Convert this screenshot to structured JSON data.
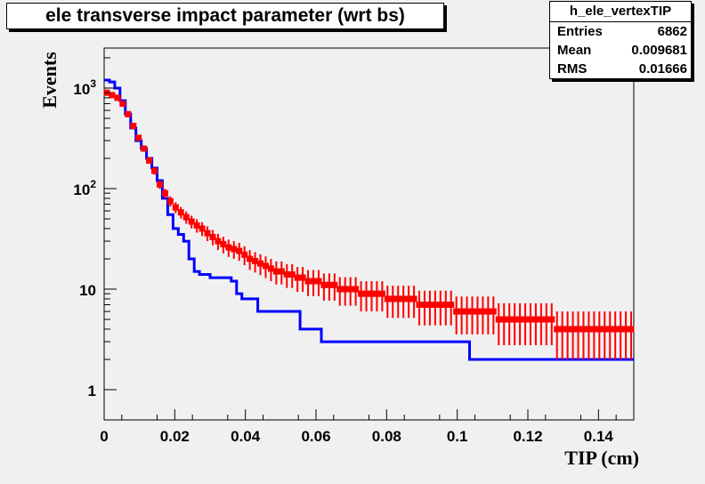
{
  "chart_data": {
    "type": "histogram",
    "title": "ele transverse impact parameter (wrt bs)",
    "xlabel": "TIP (cm)",
    "ylabel": "Events",
    "xlim": [
      0,
      0.15
    ],
    "ylim": [
      0.5,
      2500
    ],
    "yscale": "log",
    "grid": false,
    "x_ticks": [
      "0",
      "0.02",
      "0.04",
      "0.06",
      "0.08",
      "0.1",
      "0.12",
      "0.14"
    ],
    "y_ticks": [
      {
        "value": 1,
        "label": "1"
      },
      {
        "value": 10,
        "label": "10"
      },
      {
        "value": 100,
        "base": "10",
        "exp": "2"
      },
      {
        "value": 1000,
        "base": "10",
        "exp": "3"
      }
    ],
    "bin_width": 0.0015,
    "series": [
      {
        "kind": "step",
        "color": "#0000ff",
        "values": [
          1200,
          1150,
          1000,
          750,
          550,
          400,
          300,
          250,
          200,
          160,
          120,
          80,
          55,
          40,
          35,
          30,
          20,
          15,
          14,
          14,
          13,
          13,
          13,
          13,
          12,
          9,
          8,
          8,
          8,
          6,
          6,
          6,
          6,
          6,
          6,
          6,
          6,
          4,
          4,
          4,
          4,
          3,
          3,
          3,
          3,
          3,
          3,
          3,
          3,
          3,
          3,
          3,
          3,
          3,
          3,
          3,
          3,
          3,
          3,
          3,
          3,
          3,
          3,
          3,
          3,
          3,
          3,
          3,
          3,
          2,
          2,
          2,
          2,
          2,
          2,
          2,
          2,
          2,
          2,
          2,
          2,
          2,
          2,
          2,
          2,
          2,
          2,
          2,
          2,
          2,
          2,
          2,
          2,
          2,
          2,
          2,
          2,
          2,
          2,
          2
        ]
      },
      {
        "kind": "points",
        "color": "#ff0000",
        "values": [
          900,
          850,
          800,
          700,
          550,
          420,
          320,
          250,
          190,
          150,
          110,
          90,
          75,
          65,
          58,
          52,
          47,
          43,
          40,
          36,
          33,
          30,
          28,
          26,
          25,
          24,
          22,
          20,
          19,
          18,
          17,
          16,
          15,
          15,
          14,
          14,
          13,
          13,
          12,
          12,
          12,
          11,
          11,
          11,
          10,
          10,
          10,
          10,
          9,
          9,
          9,
          9,
          9,
          8,
          8,
          8,
          8,
          8,
          8,
          7,
          7,
          7,
          7,
          7,
          7,
          7,
          6,
          6,
          6,
          6,
          6,
          6,
          6,
          6,
          5,
          5,
          5,
          5,
          5,
          5,
          5,
          5,
          5,
          5,
          5,
          4,
          4,
          4,
          4,
          4,
          4,
          4,
          4,
          4,
          4,
          4,
          4,
          4,
          4,
          4
        ]
      }
    ]
  },
  "stats": {
    "name": "h_ele_vertexTIP",
    "entries_label": "Entries",
    "entries": "6862",
    "mean_label": "Mean",
    "mean": "0.009681",
    "rms_label": "RMS",
    "rms": "0.01666"
  }
}
